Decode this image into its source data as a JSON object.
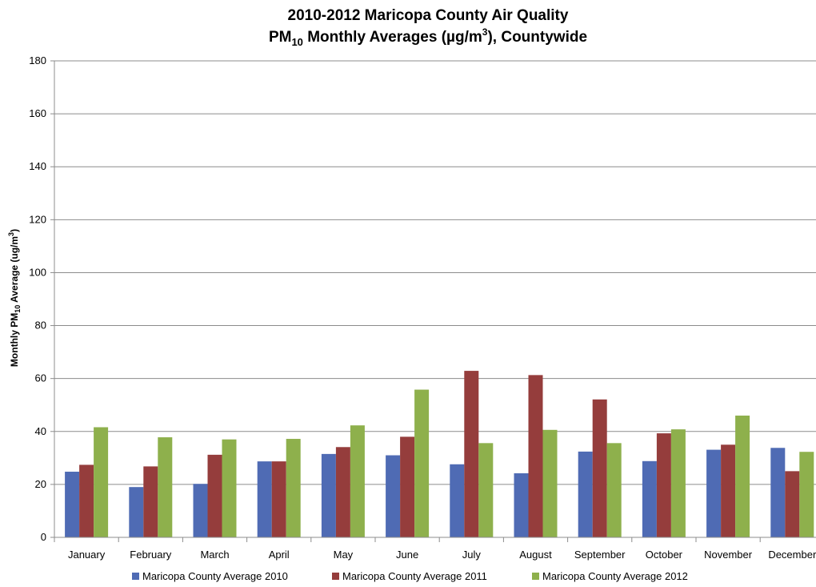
{
  "chart_data": {
    "type": "bar",
    "title": {
      "line1": "2010-2012 Maricopa County Air Quality",
      "line2_prefix": "PM",
      "line2_sub": "10",
      "line2_mid": " Monthly Averages (µg/m",
      "line2_sup": "3",
      "line2_suffix": "), Countywide"
    },
    "ylabel": {
      "prefix": "Monthly PM",
      "sub": "10",
      "mid": " Average (ug/m",
      "sup": "3",
      "suffix": ")"
    },
    "xlabel": "",
    "ylim": [
      0,
      180
    ],
    "yticks": [
      0,
      20,
      40,
      60,
      80,
      100,
      120,
      140,
      160,
      180
    ],
    "grid": true,
    "legend_position": "bottom",
    "categories": [
      "January",
      "February",
      "March",
      "April",
      "May",
      "June",
      "July",
      "August",
      "September",
      "October",
      "November",
      "December"
    ],
    "series": [
      {
        "name": "Maricopa County Average 2010",
        "color": "#4f6bb4",
        "values": [
          24.8,
          19.0,
          20.2,
          28.7,
          31.5,
          31.0,
          27.6,
          24.2,
          32.4,
          28.8,
          33.1,
          33.8
        ]
      },
      {
        "name": "Maricopa County Average 2011",
        "color": "#953d3c",
        "values": [
          27.4,
          26.8,
          31.2,
          28.7,
          34.1,
          38.0,
          62.9,
          61.3,
          52.1,
          39.3,
          35.0,
          25.0
        ]
      },
      {
        "name": "Maricopa County Average 2012",
        "color": "#8eb04c",
        "values": [
          41.6,
          37.8,
          37.0,
          37.2,
          42.3,
          55.8,
          35.6,
          40.6,
          35.6,
          40.8,
          46.0,
          32.3
        ]
      }
    ]
  }
}
